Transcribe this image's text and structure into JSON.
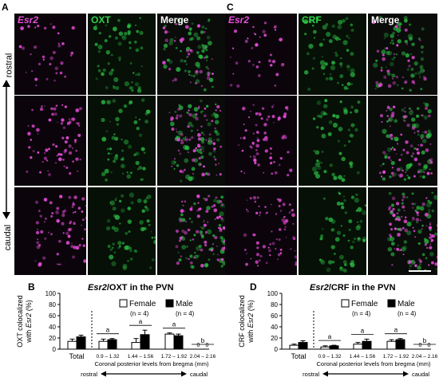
{
  "panels": {
    "A": {
      "letter": "A",
      "labels": [
        "Esr2",
        "OXT",
        "Merge"
      ],
      "label_colors": [
        "#e64fd8",
        "#2fd34a",
        "#ffffff"
      ]
    },
    "C": {
      "letter": "C",
      "labels": [
        "Esr2",
        "CRF",
        "Merge"
      ],
      "label_colors": [
        "#e64fd8",
        "#2fd34a",
        "#ffffff"
      ]
    }
  },
  "axis_words": {
    "rostral": "rostral",
    "caudal": "caudal"
  },
  "charts": {
    "B": {
      "letter": "B",
      "title_gene": "Esr2",
      "title_rest": "/OXT in the PVN",
      "ylabel_line1": "OXT colocalized",
      "ylabel_line2_pre": "with ",
      "ylabel_gene": "Esr2",
      "ylabel_line2_post": " (%)",
      "legend": {
        "female": "Female",
        "female_n": "(n = 4)",
        "male": "Male",
        "male_n": "(n = 4)"
      },
      "xlabel": "Coronal posterior levels from bregma (mm)",
      "rostral": "rostral",
      "caudal": "caudal"
    },
    "D": {
      "letter": "D",
      "title_gene": "Esr2",
      "title_rest": "/CRF in the PVN",
      "ylabel_line1": "CRF colocalized",
      "ylabel_line2_pre": "with ",
      "ylabel_gene": "Esr2",
      "ylabel_line2_post": " (%)",
      "legend": {
        "female": "Female",
        "female_n": "(n = 4)",
        "male": "Male",
        "male_n": "(n = 4)"
      },
      "xlabel": "Coronal posterior levels from bregma (mm)",
      "rostral": "rostral",
      "caudal": "caudal"
    }
  },
  "chart_data": [
    {
      "type": "bar",
      "title": "Esr2/OXT in the PVN",
      "ylabel": "OXT colocalized with Esr2 (%)",
      "xlabel": "Coronal posterior levels from bregma (mm)",
      "ylim": [
        0,
        100
      ],
      "yticks": [
        0,
        20,
        40,
        60,
        80,
        100
      ],
      "categories": [
        "Total",
        "0.9 – 1.32",
        "1.44 – 1.56",
        "1.72 – 1.92",
        "2.04 – 2.16"
      ],
      "series": [
        {
          "name": "Female",
          "values": [
            14,
            14,
            12,
            27,
            0
          ],
          "errors": [
            4,
            4,
            7,
            2,
            0
          ]
        },
        {
          "name": "Male",
          "values": [
            22,
            17,
            26,
            24,
            0
          ],
          "errors": [
            3,
            2,
            8,
            3,
            0
          ]
        }
      ],
      "zero_labels": [
        "0",
        "0"
      ],
      "significance": [
        "",
        "a",
        "a",
        "a",
        "b"
      ]
    },
    {
      "type": "bar",
      "title": "Esr2/CRF in the PVN",
      "ylabel": "CRF colocalized with Esr2 (%)",
      "xlabel": "Coronal posterior levels from bregma (mm)",
      "ylim": [
        0,
        100
      ],
      "yticks": [
        0,
        20,
        40,
        60,
        80,
        100
      ],
      "categories": [
        "Total",
        "0.9 – 1.32",
        "1.44 – 1.56",
        "1.72 – 1.92",
        "2.04 – 2.16"
      ],
      "series": [
        {
          "name": "Female",
          "values": [
            7,
            4,
            9,
            14,
            0
          ],
          "errors": [
            2,
            2,
            3,
            3,
            0
          ]
        },
        {
          "name": "Male",
          "values": [
            12,
            6,
            14,
            17,
            0
          ],
          "errors": [
            3,
            1,
            4,
            2,
            0
          ]
        }
      ],
      "zero_labels": [
        "0",
        "0"
      ],
      "significance": [
        "",
        "a",
        "a",
        "a",
        "b"
      ]
    }
  ]
}
